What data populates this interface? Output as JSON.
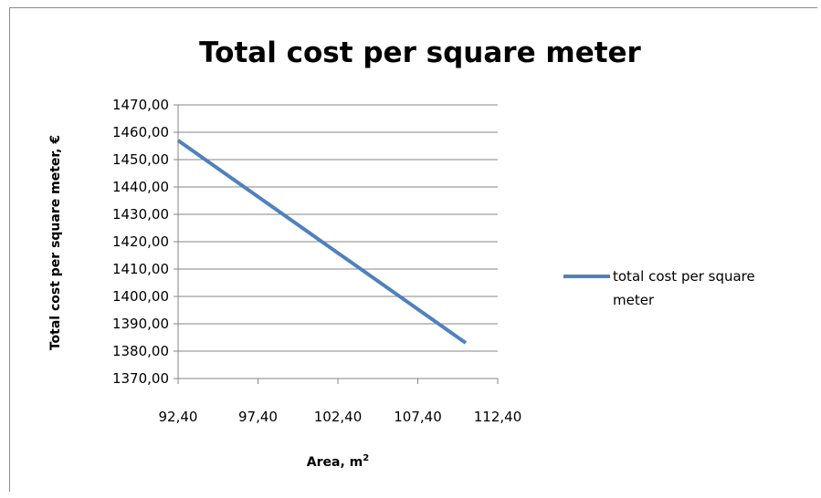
{
  "chart_data": {
    "type": "line",
    "title": "Total cost per square meter",
    "xlabel": "Area, m",
    "xlabel_sup": "2",
    "ylabel": "Total cost  per square meter, €",
    "xlim": [
      92.4,
      112.4
    ],
    "ylim": [
      1370,
      1470
    ],
    "x_ticks": [
      92.4,
      97.4,
      102.4,
      107.4,
      112.4
    ],
    "x_tick_labels": [
      "92,40",
      "97,40",
      "102,40",
      "107,40",
      "112,40"
    ],
    "y_ticks": [
      1370,
      1380,
      1390,
      1400,
      1410,
      1420,
      1430,
      1440,
      1450,
      1460,
      1470
    ],
    "y_tick_labels": [
      "1370,00",
      "1380,00",
      "1390,00",
      "1400,00",
      "1410,00",
      "1420,00",
      "1430,00",
      "1440,00",
      "1450,00",
      "1460,00",
      "1470,00"
    ],
    "grid": "horizontal",
    "legend_position": "right",
    "series": [
      {
        "name": "total cost per square meter",
        "legend_lines": [
          "total cost per square",
          "meter"
        ],
        "color": "#4f81bd",
        "x": [
          92.4,
          110.4
        ],
        "y": [
          1457,
          1383
        ]
      }
    ]
  }
}
